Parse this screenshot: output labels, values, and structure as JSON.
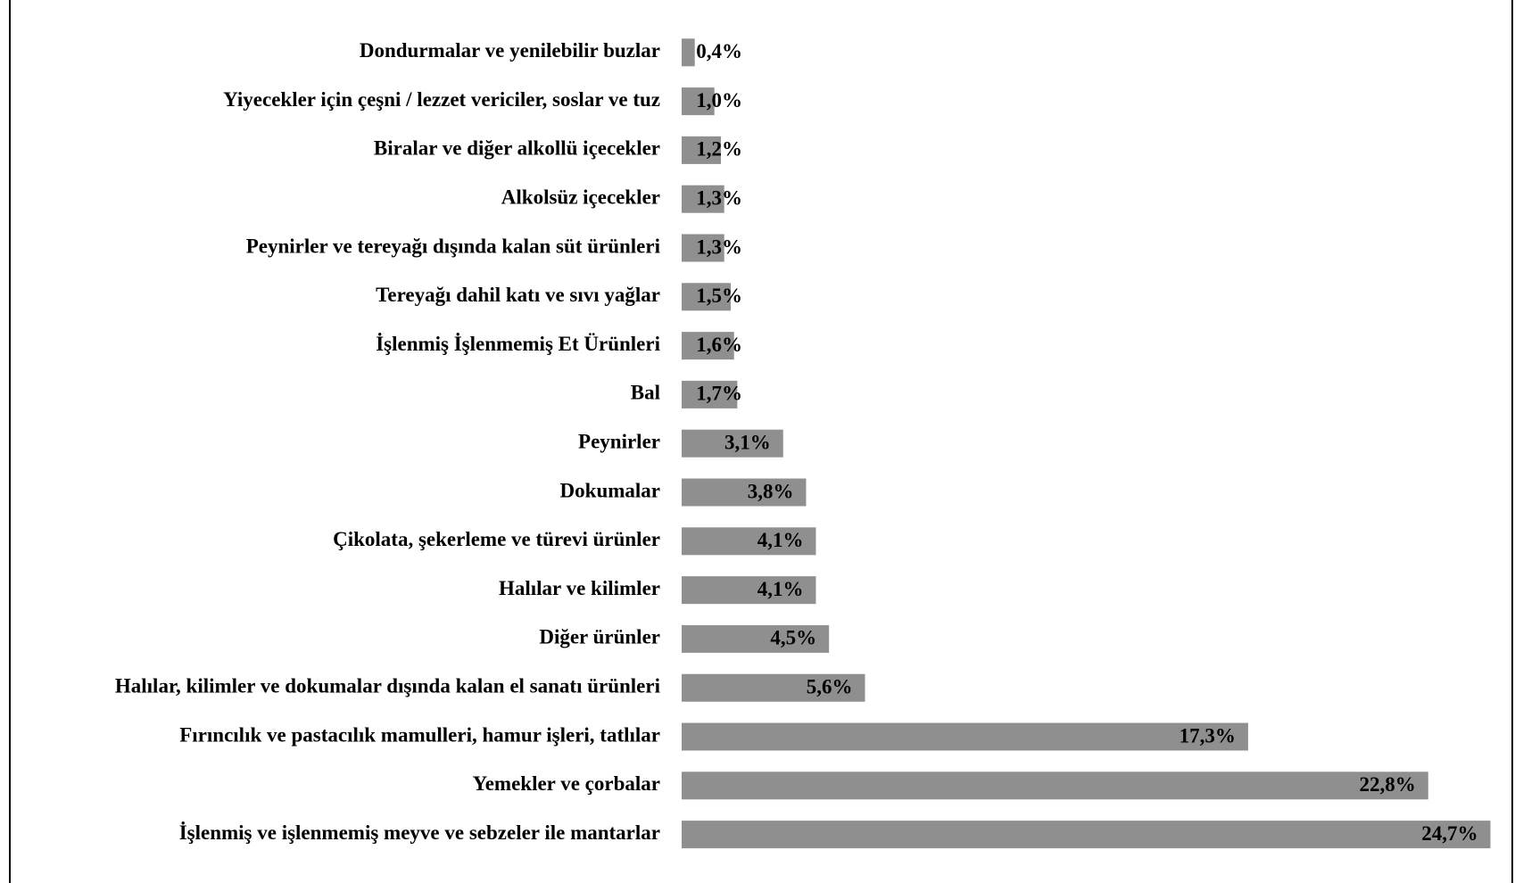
{
  "chart_data": {
    "type": "barh",
    "color": "#8f8f8f",
    "categories": [
      "Dondurmalar ve yenilebilir buzlar",
      "Yiyecekler için çeşni / lezzet vericiler, soslar ve tuz",
      "Biralar ve diğer alkollü içecekler",
      "Alkolsüz içecekler",
      "Peynirler ve tereyağı dışında kalan süt ürünleri",
      "Tereyağı dahil katı ve sıvı yağlar",
      "İşlenmiş İşlenmemiş Et Ürünleri",
      "Bal",
      "Peynirler",
      "Dokumalar",
      "Çikolata, şekerleme ve türevi ürünler",
      "Halılar ve kilimler",
      "Diğer ürünler",
      "Halılar, kilimler ve dokumalar dışında kalan el sanatı ürünleri",
      "Fırıncılık ve pastacılık mamulleri, hamur işleri, tatlılar",
      "Yemekler ve çorbalar",
      "İşlenmiş ve işlenmemiş meyve ve sebzeler ile mantarlar"
    ],
    "values": [
      0.4,
      1.0,
      1.2,
      1.3,
      1.3,
      1.5,
      1.6,
      1.7,
      3.1,
      3.8,
      4.1,
      4.1,
      4.5,
      5.6,
      17.3,
      22.8,
      24.7
    ],
    "value_labels": [
      "0,4%",
      "1,0%",
      "1,2%",
      "1,3%",
      "1,3%",
      "1,5%",
      "1,6%",
      "1,7%",
      "3,1%",
      "3,8%",
      "4,1%",
      "4,1%",
      "4,5%",
      "5,6%",
      "17,3%",
      "22,8%",
      "24,7%"
    ]
  }
}
